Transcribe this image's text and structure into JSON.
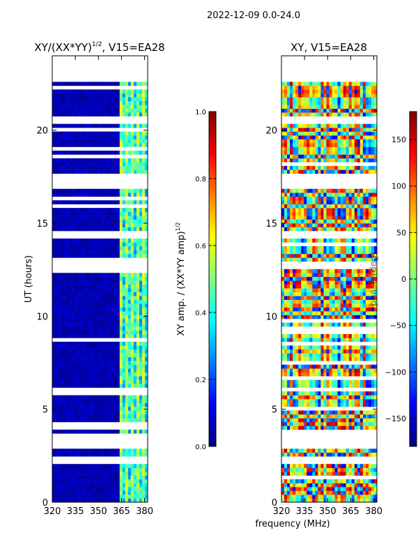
{
  "suptitle": "2022-12-09 0.0-24.0",
  "colors": {
    "jet": [
      "#00007f",
      "#0000ff",
      "#007fff",
      "#00ffff",
      "#7fff7f",
      "#ffff00",
      "#ff7f00",
      "#ff0000",
      "#7f0000"
    ],
    "background": "#ffffff",
    "axis": "#000000"
  },
  "chart_data": [
    {
      "type": "heatmap",
      "title_main": "XY/(XX*YY)",
      "title_sup": "1/2",
      "title_rest": ", V15=EA28",
      "xlabel": "",
      "ylabel": "UT (hours)",
      "xlim": [
        320,
        382
      ],
      "ylim": [
        0,
        24
      ],
      "xticks": [
        "320",
        "335",
        "350",
        "365",
        "380"
      ],
      "yticks": [
        "0",
        "5",
        "10",
        "15",
        "20"
      ],
      "data_extent_hours": [
        0,
        22.6
      ],
      "band_mhz": [
        363,
        382
      ],
      "value_range": [
        0,
        1
      ],
      "description_values": {
        "background": 0.03,
        "band": 0.45
      },
      "gaps_hours": [
        [
          2.95,
          3.55
        ],
        [
          12.7,
          12.9
        ],
        [
          14.35,
          14.55
        ],
        [
          16.9,
          17.6
        ],
        [
          20.45,
          20.65
        ],
        [
          6.0,
          6.1
        ]
      ],
      "colorbar": {
        "label_main": "XY amp. / (XX*YY amp)",
        "label_sup": "1/2",
        "ticks": [
          "0.0",
          "0.2",
          "0.4",
          "0.6",
          "0.8",
          "1.0"
        ],
        "range": [
          0,
          1
        ]
      }
    },
    {
      "type": "heatmap",
      "title": "XY, V15=EA28",
      "xlabel": "frequency (MHz)",
      "ylabel": "",
      "xlim": [
        320,
        382
      ],
      "ylim": [
        0,
        24
      ],
      "xticks": [
        "320",
        "335",
        "350",
        "365",
        "380"
      ],
      "yticks": [
        "0",
        "5",
        "10",
        "15",
        "20"
      ],
      "data_extent_hours": [
        0,
        22.6
      ],
      "value_range": [
        -180,
        180
      ],
      "gaps_hours": [
        [
          2.95,
          3.55
        ],
        [
          12.7,
          12.9
        ],
        [
          14.35,
          14.55
        ],
        [
          16.9,
          17.6
        ],
        [
          20.45,
          20.65
        ],
        [
          6.0,
          6.1
        ]
      ],
      "colorbar": {
        "label": "phase (deg)",
        "ticks": [
          "150",
          "100",
          "50",
          "0",
          "−50",
          "−100",
          "−150"
        ],
        "tick_values": [
          150,
          100,
          50,
          0,
          -50,
          -100,
          -150
        ],
        "range": [
          -180,
          180
        ]
      }
    }
  ]
}
